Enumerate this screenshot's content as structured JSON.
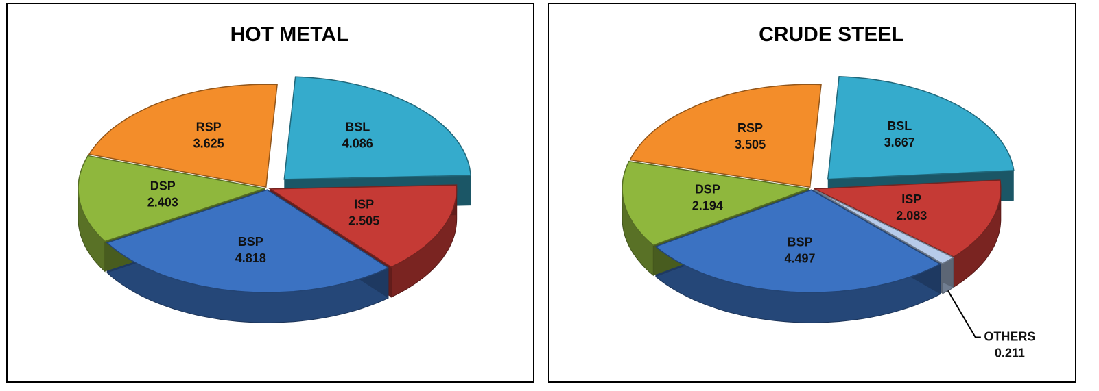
{
  "chart_data": [
    {
      "type": "pie",
      "title": "HOT METAL",
      "categories": [
        "BSL",
        "ISP",
        "BSP",
        "DSP",
        "RSP"
      ],
      "values": [
        4.086,
        2.505,
        4.818,
        2.403,
        3.625
      ],
      "colors": [
        "#35abcc",
        "#c53a35",
        "#3b72c2",
        "#8fb73d",
        "#f38d2a"
      ],
      "exploded": "BSL"
    },
    {
      "type": "pie",
      "title": "CRUDE STEEL",
      "categories": [
        "BSL",
        "ISP",
        "OTHERS",
        "BSP",
        "DSP",
        "RSP"
      ],
      "values": [
        3.667,
        2.083,
        0.211,
        4.497,
        2.194,
        3.505
      ],
      "colors": [
        "#35abcc",
        "#c53a35",
        "#b7cbea",
        "#3b72c2",
        "#8fb73d",
        "#f38d2a"
      ],
      "exploded": "BSL"
    }
  ]
}
